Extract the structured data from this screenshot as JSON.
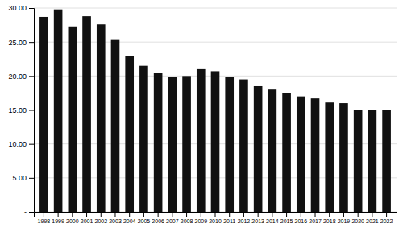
{
  "chart_data": {
    "type": "bar",
    "categories": [
      "1998",
      "1999",
      "2000",
      "2001",
      "2002",
      "2003",
      "2004",
      "2005",
      "2006",
      "2007",
      "2008",
      "2009",
      "2010",
      "2011",
      "2012",
      "2013",
      "2014",
      "2015",
      "2016",
      "2017",
      "2018",
      "2019",
      "2020",
      "2021",
      "2022"
    ],
    "values": [
      28.7,
      29.8,
      27.3,
      28.8,
      27.6,
      25.3,
      23.0,
      21.5,
      20.5,
      19.9,
      20.0,
      21.0,
      20.7,
      19.9,
      19.5,
      18.5,
      18.0,
      17.5,
      17.0,
      16.7,
      16.1,
      16.0,
      15.0,
      15.0,
      15.0
    ],
    "color": "#111111",
    "ylim": [
      0,
      30
    ],
    "yticks": [
      {
        "value": 0,
        "label": "-"
      },
      {
        "value": 5,
        "label": "5.00"
      },
      {
        "value": 10,
        "label": "10.00"
      },
      {
        "value": 15,
        "label": "15.00"
      },
      {
        "value": 20,
        "label": "20.00"
      },
      {
        "value": 25,
        "label": "25.00"
      },
      {
        "value": 30,
        "label": "30.00"
      }
    ],
    "grid": true
  }
}
